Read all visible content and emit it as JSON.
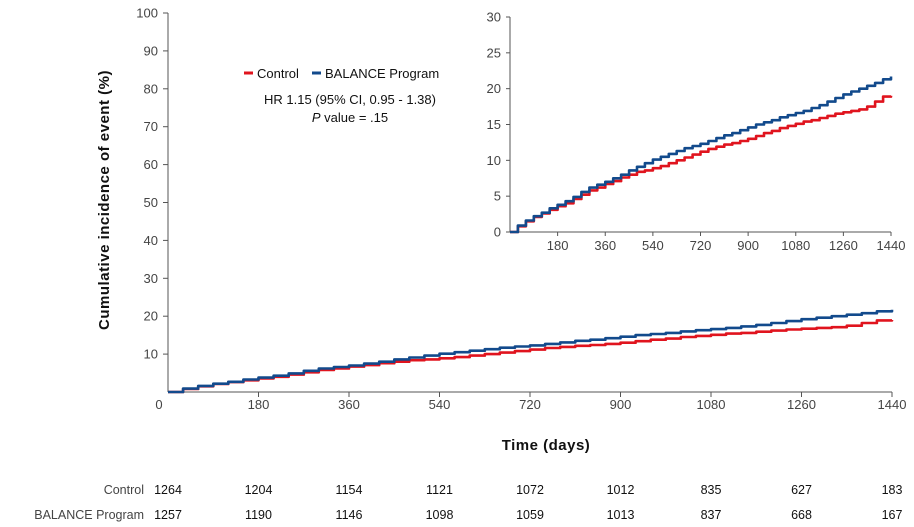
{
  "chart_data": [
    {
      "type": "line",
      "title": "",
      "xlabel": "Time (days)",
      "ylabel": "Cumulative incidence of event (%)",
      "xlim": [
        0,
        1440
      ],
      "ylim": [
        0,
        100
      ],
      "x_ticks": [
        "0",
        "180",
        "360",
        "540",
        "720",
        "900",
        "1080",
        "1260",
        "1440"
      ],
      "y_ticks": [
        "10",
        "20",
        "30",
        "40",
        "50",
        "60",
        "70",
        "80",
        "90",
        "100"
      ],
      "legend_position": "top-left",
      "series": [
        {
          "name": "Control",
          "color": "#e0141e",
          "x": [
            0,
            30,
            60,
            90,
            120,
            150,
            180,
            210,
            240,
            270,
            300,
            330,
            360,
            390,
            420,
            450,
            480,
            510,
            540,
            570,
            600,
            630,
            660,
            690,
            720,
            750,
            780,
            810,
            840,
            870,
            900,
            930,
            960,
            990,
            1020,
            1050,
            1080,
            1110,
            1140,
            1170,
            1200,
            1230,
            1260,
            1290,
            1320,
            1350,
            1380,
            1410,
            1440
          ],
          "y": [
            0,
            0.8,
            1.5,
            2.1,
            2.6,
            3.1,
            3.6,
            4.0,
            4.6,
            5.2,
            5.8,
            6.2,
            6.7,
            7.1,
            7.6,
            8.0,
            8.4,
            8.6,
            8.9,
            9.2,
            9.6,
            10.0,
            10.4,
            10.8,
            11.2,
            11.6,
            11.9,
            12.2,
            12.4,
            12.7,
            13.0,
            13.4,
            13.8,
            14.1,
            14.5,
            14.8,
            15.1,
            15.4,
            15.6,
            15.9,
            16.2,
            16.5,
            16.7,
            16.9,
            17.1,
            17.5,
            18.2,
            18.9,
            19.0
          ]
        },
        {
          "name": "BALANCE Program",
          "color": "#124a8c",
          "x": [
            0,
            30,
            60,
            90,
            120,
            150,
            180,
            210,
            240,
            270,
            300,
            330,
            360,
            390,
            420,
            450,
            480,
            510,
            540,
            570,
            600,
            630,
            660,
            690,
            720,
            750,
            780,
            810,
            840,
            870,
            900,
            930,
            960,
            990,
            1020,
            1050,
            1080,
            1110,
            1140,
            1170,
            1200,
            1230,
            1260,
            1290,
            1320,
            1350,
            1380,
            1410,
            1440
          ],
          "y": [
            0,
            0.9,
            1.6,
            2.2,
            2.7,
            3.3,
            3.8,
            4.3,
            4.9,
            5.6,
            6.2,
            6.6,
            7.0,
            7.5,
            8.0,
            8.6,
            9.1,
            9.6,
            10.1,
            10.5,
            10.9,
            11.3,
            11.7,
            12.0,
            12.3,
            12.7,
            13.1,
            13.5,
            13.8,
            14.2,
            14.6,
            15.0,
            15.3,
            15.6,
            16.0,
            16.3,
            16.6,
            16.9,
            17.3,
            17.7,
            18.2,
            18.7,
            19.2,
            19.6,
            20.0,
            20.4,
            20.8,
            21.3,
            21.7
          ]
        }
      ],
      "annotations": [
        "HR 1.15 (95% CI, 0.95 - 1.38)",
        "P value = .15"
      ]
    },
    {
      "type": "line",
      "title": "",
      "xlabel": "",
      "ylabel": "",
      "xlim": [
        0,
        1440
      ],
      "ylim": [
        0,
        30
      ],
      "x_ticks": [
        "180",
        "360",
        "540",
        "720",
        "900",
        "1080",
        "1260",
        "1440"
      ],
      "y_ticks": [
        "0",
        "5",
        "10",
        "15",
        "20",
        "25",
        "30"
      ],
      "series": [
        {
          "name": "Control",
          "color": "#e0141e",
          "ref": 0
        },
        {
          "name": "BALANCE Program",
          "color": "#124a8c",
          "ref": 1
        }
      ]
    }
  ],
  "legend": {
    "control_label": "Control",
    "balance_label": "BALANCE Program",
    "hr_text": "HR 1.15 (95% CI, 0.95 - 1.38)",
    "p_label": "P",
    "p_rest": " value = .15"
  },
  "risk_table": {
    "rows": [
      {
        "label": "Control",
        "values": [
          "1264",
          "1204",
          "1154",
          "1121",
          "1072",
          "1012",
          "835",
          "627",
          "183"
        ]
      },
      {
        "label": "BALANCE Program",
        "values": [
          "1257",
          "1190",
          "1146",
          "1098",
          "1059",
          "1013",
          "837",
          "668",
          "167"
        ]
      }
    ]
  }
}
